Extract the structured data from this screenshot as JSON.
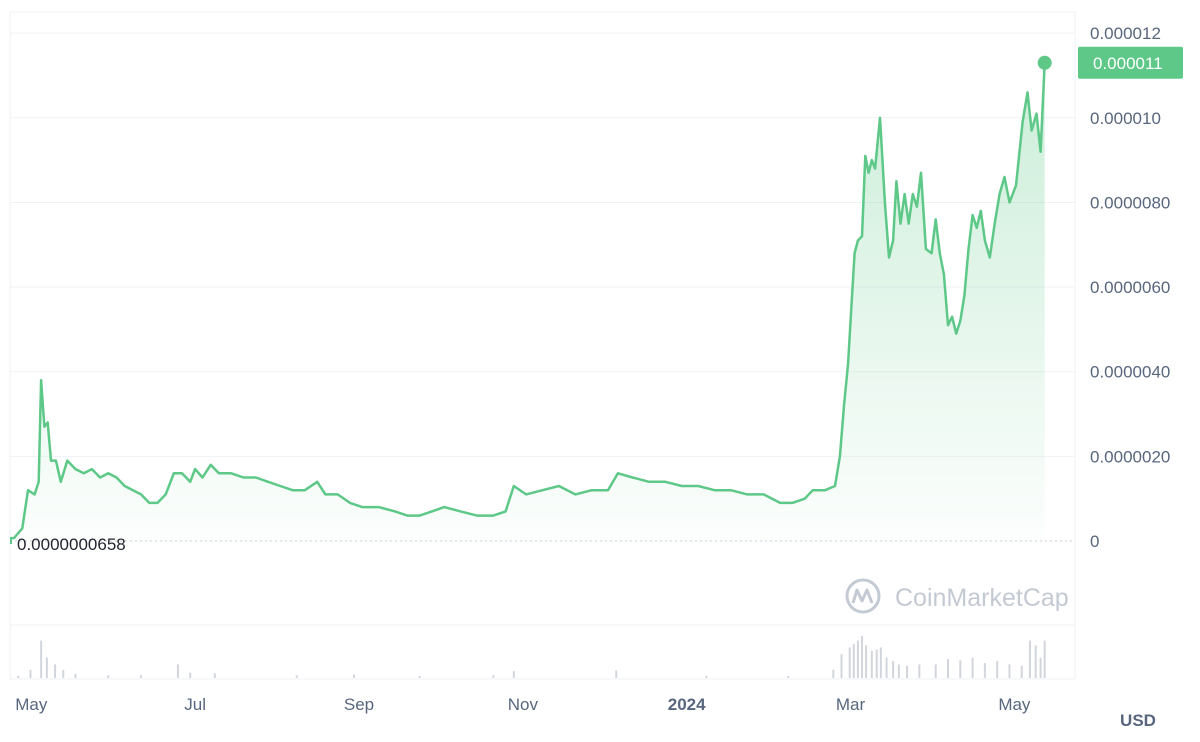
{
  "chart_data": {
    "type": "area",
    "currency": "USD",
    "watermark": "CoinMarketCap",
    "colors": {
      "line": "#5dc887",
      "fill": "#5dc887",
      "volume": "#d2d6dc",
      "grid": "#eff2f5",
      "text": "#58667e"
    },
    "x_ticks": [
      {
        "label": "May",
        "t": 0.26
      },
      {
        "label": "Jul",
        "t": 2.26
      },
      {
        "label": "Sep",
        "t": 4.26
      },
      {
        "label": "Nov",
        "t": 6.26
      },
      {
        "label": "2024",
        "t": 8.26,
        "bold": true
      },
      {
        "label": "Mar",
        "t": 10.26
      },
      {
        "label": "May",
        "t": 12.26
      }
    ],
    "y_ticks": [
      {
        "label": "0",
        "value": 0
      },
      {
        "label": "0.0000020",
        "value": 2e-06
      },
      {
        "label": "0.0000040",
        "value": 4e-06
      },
      {
        "label": "0.0000060",
        "value": 6e-06
      },
      {
        "label": "0.0000080",
        "value": 8e-06
      },
      {
        "label": "0.000010",
        "value": 1e-05
      },
      {
        "label": "0.000012",
        "value": 1.2e-05
      }
    ],
    "ylim": [
      0,
      1.25e-05
    ],
    "xlim": [
      0,
      13.0
    ],
    "min_label": "0.0000000658",
    "min_value": 6.58e-08,
    "current_label": "0.000011",
    "current_value": 1.13e-05,
    "series": [
      {
        "points": [
          [
            0.0,
            6.58e-08
          ],
          [
            0.05,
            7e-08
          ],
          [
            0.15,
            3e-07
          ],
          [
            0.22,
            1.2e-06
          ],
          [
            0.3,
            1.1e-06
          ],
          [
            0.35,
            1.4e-06
          ],
          [
            0.38,
            3.8e-06
          ],
          [
            0.42,
            2.7e-06
          ],
          [
            0.46,
            2.8e-06
          ],
          [
            0.5,
            1.9e-06
          ],
          [
            0.56,
            1.9e-06
          ],
          [
            0.62,
            1.4e-06
          ],
          [
            0.7,
            1.9e-06
          ],
          [
            0.8,
            1.7e-06
          ],
          [
            0.9,
            1.6e-06
          ],
          [
            1.0,
            1.7e-06
          ],
          [
            1.1,
            1.5e-06
          ],
          [
            1.2,
            1.6e-06
          ],
          [
            1.3,
            1.5e-06
          ],
          [
            1.4,
            1.3e-06
          ],
          [
            1.5,
            1.2e-06
          ],
          [
            1.6,
            1.1e-06
          ],
          [
            1.7,
            9e-07
          ],
          [
            1.8,
            9e-07
          ],
          [
            1.9,
            1.1e-06
          ],
          [
            2.0,
            1.6e-06
          ],
          [
            2.1,
            1.6e-06
          ],
          [
            2.2,
            1.4e-06
          ],
          [
            2.26,
            1.7e-06
          ],
          [
            2.35,
            1.5e-06
          ],
          [
            2.45,
            1.8e-06
          ],
          [
            2.55,
            1.6e-06
          ],
          [
            2.7,
            1.6e-06
          ],
          [
            2.85,
            1.5e-06
          ],
          [
            3.0,
            1.5e-06
          ],
          [
            3.15,
            1.4e-06
          ],
          [
            3.3,
            1.3e-06
          ],
          [
            3.45,
            1.2e-06
          ],
          [
            3.6,
            1.2e-06
          ],
          [
            3.75,
            1.4e-06
          ],
          [
            3.85,
            1.1e-06
          ],
          [
            4.0,
            1.1e-06
          ],
          [
            4.15,
            9e-07
          ],
          [
            4.3,
            8e-07
          ],
          [
            4.5,
            8e-07
          ],
          [
            4.7,
            7e-07
          ],
          [
            4.85,
            6e-07
          ],
          [
            5.0,
            6e-07
          ],
          [
            5.15,
            7e-07
          ],
          [
            5.3,
            8e-07
          ],
          [
            5.5,
            7e-07
          ],
          [
            5.7,
            6e-07
          ],
          [
            5.9,
            6e-07
          ],
          [
            6.05,
            7e-07
          ],
          [
            6.15,
            1.3e-06
          ],
          [
            6.3,
            1.1e-06
          ],
          [
            6.5,
            1.2e-06
          ],
          [
            6.7,
            1.3e-06
          ],
          [
            6.9,
            1.1e-06
          ],
          [
            7.1,
            1.2e-06
          ],
          [
            7.3,
            1.2e-06
          ],
          [
            7.42,
            1.6e-06
          ],
          [
            7.6,
            1.5e-06
          ],
          [
            7.8,
            1.4e-06
          ],
          [
            8.0,
            1.4e-06
          ],
          [
            8.2,
            1.3e-06
          ],
          [
            8.4,
            1.3e-06
          ],
          [
            8.6,
            1.2e-06
          ],
          [
            8.8,
            1.2e-06
          ],
          [
            9.0,
            1.1e-06
          ],
          [
            9.2,
            1.1e-06
          ],
          [
            9.4,
            9e-07
          ],
          [
            9.55,
            9e-07
          ],
          [
            9.7,
            1e-06
          ],
          [
            9.8,
            1.2e-06
          ],
          [
            9.95,
            1.2e-06
          ],
          [
            10.07,
            1.3e-06
          ],
          [
            10.13,
            2e-06
          ],
          [
            10.18,
            3.2e-06
          ],
          [
            10.23,
            4.2e-06
          ],
          [
            10.27,
            5.5e-06
          ],
          [
            10.31,
            6.8e-06
          ],
          [
            10.35,
            7.1e-06
          ],
          [
            10.4,
            7.2e-06
          ],
          [
            10.44,
            9.1e-06
          ],
          [
            10.48,
            8.7e-06
          ],
          [
            10.52,
            9e-06
          ],
          [
            10.56,
            8.8e-06
          ],
          [
            10.62,
            1e-05
          ],
          [
            10.68,
            8e-06
          ],
          [
            10.73,
            6.7e-06
          ],
          [
            10.78,
            7.1e-06
          ],
          [
            10.82,
            8.5e-06
          ],
          [
            10.87,
            7.5e-06
          ],
          [
            10.92,
            8.2e-06
          ],
          [
            10.97,
            7.5e-06
          ],
          [
            11.02,
            8.2e-06
          ],
          [
            11.07,
            7.9e-06
          ],
          [
            11.12,
            8.7e-06
          ],
          [
            11.18,
            6.9e-06
          ],
          [
            11.25,
            6.8e-06
          ],
          [
            11.3,
            7.6e-06
          ],
          [
            11.35,
            6.8e-06
          ],
          [
            11.4,
            6.3e-06
          ],
          [
            11.45,
            5.1e-06
          ],
          [
            11.5,
            5.3e-06
          ],
          [
            11.55,
            4.9e-06
          ],
          [
            11.6,
            5.2e-06
          ],
          [
            11.65,
            5.8e-06
          ],
          [
            11.7,
            6.9e-06
          ],
          [
            11.75,
            7.7e-06
          ],
          [
            11.8,
            7.4e-06
          ],
          [
            11.85,
            7.8e-06
          ],
          [
            11.9,
            7.1e-06
          ],
          [
            11.96,
            6.7e-06
          ],
          [
            12.02,
            7.5e-06
          ],
          [
            12.08,
            8.2e-06
          ],
          [
            12.14,
            8.6e-06
          ],
          [
            12.2,
            8e-06
          ],
          [
            12.28,
            8.4e-06
          ],
          [
            12.36,
            9.9e-06
          ],
          [
            12.42,
            1.06e-05
          ],
          [
            12.47,
            9.7e-06
          ],
          [
            12.53,
            1.01e-05
          ],
          [
            12.58,
            9.2e-06
          ],
          [
            12.63,
            1.13e-05
          ]
        ]
      }
    ],
    "volume": [
      [
        0.1,
        0.03
      ],
      [
        0.25,
        0.12
      ],
      [
        0.38,
        0.55
      ],
      [
        0.45,
        0.3
      ],
      [
        0.55,
        0.2
      ],
      [
        0.65,
        0.12
      ],
      [
        0.8,
        0.06
      ],
      [
        1.2,
        0.04
      ],
      [
        1.6,
        0.04
      ],
      [
        2.05,
        0.2
      ],
      [
        2.2,
        0.08
      ],
      [
        2.5,
        0.07
      ],
      [
        3.5,
        0.04
      ],
      [
        4.2,
        0.05
      ],
      [
        5.0,
        0.03
      ],
      [
        5.9,
        0.04
      ],
      [
        6.15,
        0.1
      ],
      [
        7.4,
        0.11
      ],
      [
        8.5,
        0.03
      ],
      [
        9.5,
        0.03
      ],
      [
        10.05,
        0.12
      ],
      [
        10.15,
        0.35
      ],
      [
        10.25,
        0.45
      ],
      [
        10.3,
        0.5
      ],
      [
        10.35,
        0.55
      ],
      [
        10.4,
        0.62
      ],
      [
        10.45,
        0.48
      ],
      [
        10.52,
        0.4
      ],
      [
        10.58,
        0.42
      ],
      [
        10.63,
        0.45
      ],
      [
        10.7,
        0.3
      ],
      [
        10.78,
        0.25
      ],
      [
        10.85,
        0.2
      ],
      [
        10.95,
        0.18
      ],
      [
        11.1,
        0.2
      ],
      [
        11.3,
        0.2
      ],
      [
        11.45,
        0.28
      ],
      [
        11.6,
        0.26
      ],
      [
        11.75,
        0.3
      ],
      [
        11.9,
        0.22
      ],
      [
        12.05,
        0.25
      ],
      [
        12.2,
        0.2
      ],
      [
        12.35,
        0.18
      ],
      [
        12.45,
        0.55
      ],
      [
        12.52,
        0.48
      ],
      [
        12.58,
        0.3
      ],
      [
        12.63,
        0.55
      ]
    ]
  }
}
